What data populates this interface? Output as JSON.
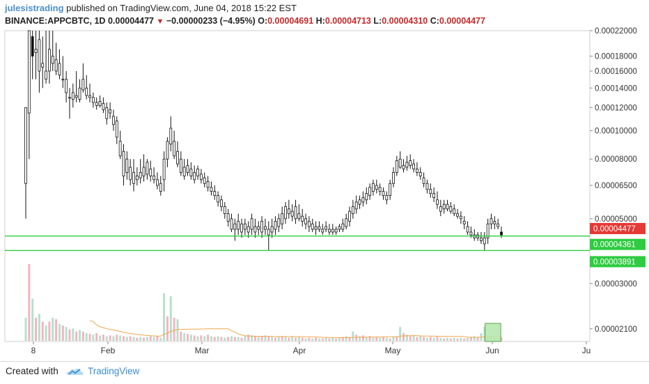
{
  "header": {
    "user": "julesistrading",
    "published": "published on TradingView.com, June 04, 2018 15:22 EST",
    "symbol": "BINANCE:APPCBTC, 1D",
    "last": "0.00004477",
    "change": "−0.00000233 (−4.95%)",
    "open_label": "O:",
    "open": "0.00004691",
    "high_label": "H:",
    "high": "0.00004713",
    "low_label": "L:",
    "low": "0.00004310",
    "close_label": "C:",
    "close": "0.00004477"
  },
  "footer": {
    "created_with": "Created with",
    "brand": "TradingView"
  },
  "chart_data": {
    "type": "candlestick",
    "scale": "log",
    "y_ticks": [
      "0.00022000",
      "0.00018000",
      "0.00016000",
      "0.00014000",
      "0.00012000",
      "0.00010000",
      "0.00008000",
      "0.00006500",
      "0.00005000",
      "0.00003000",
      "0.00002100"
    ],
    "x_ticks": [
      "8",
      "Feb",
      "Mar",
      "Apr",
      "May",
      "Jun",
      "Ju"
    ],
    "horizontal_lines": [
      {
        "value": 4.361e-05,
        "label": "0.00004361",
        "color": "#2ecc40"
      },
      {
        "value": 3.891e-05,
        "label": "0.00003891",
        "color": "#2ecc40"
      }
    ],
    "last_price_label": {
      "value": 4.477e-05,
      "label": "0.00004477",
      "color": "#e53935"
    },
    "colors": {
      "candle": "#111111",
      "volume_up": "#a8dcc0",
      "volume_down": "#f2a6ba",
      "ma": "#f0a64a",
      "level": "#2ecc40",
      "highlight": "#b8e8b0"
    },
    "candles": [
      [
        5e-05,
        6.6e-05,
        0.0001,
        0.00012
      ],
      [
        8e-05,
        0.000115,
        0.00022,
        0.00022
      ],
      [
        0.00015,
        0.00021,
        0.00022,
        0.00018
      ],
      [
        0.00015,
        0.000185,
        0.00022,
        0.00019
      ],
      [
        0.000135,
        0.00016,
        0.00022,
        0.000205
      ],
      [
        0.00014,
        0.000165,
        0.00021,
        0.00017
      ],
      [
        0.000145,
        0.00015,
        0.00022,
        0.00016
      ],
      [
        0.000145,
        0.00016,
        0.00022,
        0.00019
      ],
      [
        0.00016,
        0.00017,
        0.00022,
        0.00018
      ],
      [
        0.000155,
        0.00016,
        0.0002,
        0.000175
      ],
      [
        0.00015,
        0.000155,
        0.00019,
        0.00017
      ],
      [
        0.00014,
        0.00015,
        0.00018,
        0.00015
      ],
      [
        0.000125,
        0.000135,
        0.00016,
        0.00015
      ],
      [
        0.00011,
        0.00013,
        0.00014,
        0.00013
      ],
      [
        0.00012,
        0.000128,
        0.000145,
        0.000135
      ],
      [
        0.000125,
        0.00013,
        0.00016,
        0.000132
      ],
      [
        0.000125,
        0.000128,
        0.00015,
        0.00014
      ],
      [
        0.000135,
        0.000138,
        0.00017,
        0.00015
      ],
      [
        0.000128,
        0.000132,
        0.000155,
        0.00014
      ],
      [
        0.000125,
        0.00013,
        0.000145,
        0.000132
      ],
      [
        0.00012,
        0.000125,
        0.000135,
        0.00013
      ],
      [
        0.000118,
        0.000122,
        0.00013,
        0.000125
      ],
      [
        0.00012,
        0.000122,
        0.000132,
        0.000126
      ],
      [
        0.000115,
        0.000118,
        0.00013,
        0.000124
      ],
      [
        0.000105,
        0.00011,
        0.000125,
        0.00012
      ],
      [
        0.00011,
        0.000115,
        0.000125,
        0.000118
      ],
      [
        0.0001,
        0.000105,
        0.000118,
        0.000112
      ],
      [
        9e-05,
        9.5e-05,
        0.000112,
        0.000108
      ],
      [
        8e-05,
        8.2e-05,
        0.0001,
        9.2e-05
      ],
      [
        6.5e-05,
        7e-05,
        9e-05,
        8.5e-05
      ],
      [
        6.8e-05,
        7.2e-05,
        8.5e-05,
        8e-05
      ],
      [
        6.5e-05,
        6.8e-05,
        8e-05,
        7.5e-05
      ],
      [
        6.2e-05,
        6.6e-05,
        8e-05,
        7.2e-05
      ],
      [
        6.5e-05,
        6.8e-05,
        7.5e-05,
        7e-05
      ],
      [
        6.6e-05,
        6.9e-05,
        8e-05,
        7.2e-05
      ],
      [
        6.7e-05,
        7e-05,
        8.3e-05,
        7.5e-05
      ],
      [
        6.8e-05,
        7.1e-05,
        8e-05,
        7.8e-05
      ],
      [
        6.7e-05,
        7e-05,
        7.9e-05,
        7.4e-05
      ],
      [
        6.6e-05,
        6.8e-05,
        7.5e-05,
        7e-05
      ],
      [
        6.3e-05,
        6.5e-05,
        7.2e-05,
        6.8e-05
      ],
      [
        6e-05,
        6.2e-05,
        7e-05,
        6.6e-05
      ],
      [
        6.2e-05,
        6.8e-05,
        8.5e-05,
        8e-05
      ],
      [
        7.5e-05,
        8e-05,
        9.5e-05,
        9.2e-05
      ],
      [
        8.5e-05,
        9e-05,
        0.000112,
        0.000102
      ],
      [
        8e-05,
        8.2e-05,
        0.0001,
        9.2e-05
      ],
      [
        7.5e-05,
        7.7e-05,
        9.2e-05,
        8.5e-05
      ],
      [
        7e-05,
        7.2e-05,
        8.5e-05,
        8e-05
      ],
      [
        6.8e-05,
        7e-05,
        8e-05,
        7.5e-05
      ],
      [
        7e-05,
        7.2e-05,
        8e-05,
        7.6e-05
      ],
      [
        6.8e-05,
        7e-05,
        7.8e-05,
        7.4e-05
      ],
      [
        6.6e-05,
        6.8e-05,
        7.6e-05,
        7.2e-05
      ],
      [
        6.8e-05,
        7e-05,
        7.6e-05,
        7.4e-05
      ],
      [
        6.6e-05,
        6.8e-05,
        7.4e-05,
        7.1e-05
      ],
      [
        6.4e-05,
        6.6e-05,
        7.2e-05,
        6.9e-05
      ],
      [
        6.2e-05,
        6.4e-05,
        7e-05,
        6.7e-05
      ],
      [
        6e-05,
        6.2e-05,
        6.7e-05,
        6.4e-05
      ],
      [
        5.8e-05,
        6e-05,
        6.5e-05,
        6.2e-05
      ],
      [
        5.5e-05,
        5.7e-05,
        6.2e-05,
        6e-05
      ],
      [
        5.3e-05,
        5.5e-05,
        6e-05,
        5.8e-05
      ],
      [
        5e-05,
        5.2e-05,
        5.7e-05,
        5.5e-05
      ],
      [
        4.7e-05,
        4.9e-05,
        5.4e-05,
        5.2e-05
      ],
      [
        4.5e-05,
        4.6e-05,
        5.2e-05,
        5e-05
      ],
      [
        4.2e-05,
        4.6e-05,
        5e-05,
        4.8e-05
      ],
      [
        4.4e-05,
        4.6e-05,
        5.2e-05,
        4.9e-05
      ],
      [
        4.3e-05,
        4.5e-05,
        5e-05,
        4.8e-05
      ],
      [
        4.4e-05,
        4.6e-05,
        5e-05,
        4.8e-05
      ],
      [
        4.3e-05,
        4.5e-05,
        4.9e-05,
        4.7e-05
      ],
      [
        4.4e-05,
        4.6e-05,
        5.2e-05,
        5e-05
      ],
      [
        4.3e-05,
        4.5e-05,
        5e-05,
        4.7e-05
      ],
      [
        4.4e-05,
        4.6e-05,
        4.9e-05,
        4.7e-05
      ],
      [
        4.3e-05,
        4.5e-05,
        5.1e-05,
        4.9e-05
      ],
      [
        4.4e-05,
        4.6e-05,
        5e-05,
        4.7e-05
      ],
      [
        3.9e-05,
        4.4e-05,
        4.9e-05,
        4.6e-05
      ],
      [
        4.3e-05,
        4.5e-05,
        5e-05,
        4.7e-05
      ],
      [
        4.4e-05,
        4.6e-05,
        5.1e-05,
        4.9e-05
      ],
      [
        4.5e-05,
        4.7e-05,
        5.2e-05,
        5e-05
      ],
      [
        4.6e-05,
        4.8e-05,
        5.5e-05,
        5.2e-05
      ],
      [
        4.8e-05,
        5e-05,
        5.7e-05,
        5.5e-05
      ],
      [
        5e-05,
        5.2e-05,
        5.8e-05,
        5.4e-05
      ],
      [
        4.9e-05,
        5.1e-05,
        5.6e-05,
        5.3e-05
      ],
      [
        4.8e-05,
        5e-05,
        5.8e-05,
        5.5e-05
      ],
      [
        4.9e-05,
        5e-05,
        5.6e-05,
        5.2e-05
      ],
      [
        4.7e-05,
        4.9e-05,
        5.4e-05,
        5.1e-05
      ],
      [
        4.6e-05,
        4.8e-05,
        5.2e-05,
        5e-05
      ],
      [
        4.5e-05,
        4.7e-05,
        5.1e-05,
        4.9e-05
      ],
      [
        4.5e-05,
        4.6e-05,
        5e-05,
        4.8e-05
      ],
      [
        4.4e-05,
        4.6e-05,
        4.9e-05,
        4.7e-05
      ],
      [
        4.5e-05,
        4.6e-05,
        4.9e-05,
        4.7e-05
      ],
      [
        4.4e-05,
        4.5e-05,
        4.8e-05,
        4.6e-05
      ],
      [
        4.5e-05,
        4.6e-05,
        4.9e-05,
        4.7e-05
      ],
      [
        4.4e-05,
        4.5e-05,
        4.8e-05,
        4.6e-05
      ],
      [
        4.4e-05,
        4.5e-05,
        4.8e-05,
        4.6e-05
      ],
      [
        4.4e-05,
        4.5e-05,
        4.7e-05,
        4.6e-05
      ],
      [
        4.5e-05,
        4.6e-05,
        4.8e-05,
        4.7e-05
      ],
      [
        4.5e-05,
        4.6e-05,
        5e-05,
        4.8e-05
      ],
      [
        4.6e-05,
        4.7e-05,
        5.2e-05,
        5e-05
      ],
      [
        4.7e-05,
        4.9e-05,
        5.5e-05,
        5.3e-05
      ],
      [
        5e-05,
        5.2e-05,
        5.8e-05,
        5.5e-05
      ],
      [
        5.2e-05,
        5.4e-05,
        6e-05,
        5.7e-05
      ],
      [
        5.4e-05,
        5.6e-05,
        6e-05,
        5.8e-05
      ],
      [
        5.5e-05,
        5.7e-05,
        6.2e-05,
        5.9e-05
      ],
      [
        5.6e-05,
        5.8e-05,
        6.4e-05,
        6.1e-05
      ],
      [
        5.8e-05,
        6e-05,
        6.6e-05,
        6.4e-05
      ],
      [
        6e-05,
        6.2e-05,
        6.8e-05,
        6.6e-05
      ],
      [
        6.1e-05,
        6.3e-05,
        6.8e-05,
        6.5e-05
      ],
      [
        6e-05,
        6.2e-05,
        6.6e-05,
        6.4e-05
      ],
      [
        5.8e-05,
        6e-05,
        6.4e-05,
        6.2e-05
      ],
      [
        5.6e-05,
        5.8e-05,
        6.2e-05,
        6e-05
      ],
      [
        5.8e-05,
        6e-05,
        6.8e-05,
        6.6e-05
      ],
      [
        6.4e-05,
        6.6e-05,
        7.5e-05,
        7.2e-05
      ],
      [
        7e-05,
        7.2e-05,
        8.2e-05,
        7.9e-05
      ],
      [
        7.4e-05,
        7.5e-05,
        8.5e-05,
        8e-05
      ],
      [
        7.2e-05,
        7.4e-05,
        8e-05,
        7.6e-05
      ],
      [
        7.3e-05,
        7.5e-05,
        8.2e-05,
        7.8e-05
      ],
      [
        7.4e-05,
        7.6e-05,
        8.3e-05,
        7.9e-05
      ],
      [
        7.2e-05,
        7.4e-05,
        8e-05,
        7.7e-05
      ],
      [
        7e-05,
        7.2e-05,
        7.8e-05,
        7.4e-05
      ],
      [
        6.8e-05,
        7e-05,
        7.5e-05,
        7.2e-05
      ],
      [
        6.4e-05,
        6.6e-05,
        7.2e-05,
        6.9e-05
      ],
      [
        6.1e-05,
        6.3e-05,
        6.8e-05,
        6.6e-05
      ],
      [
        5.9e-05,
        6.1e-05,
        6.6e-05,
        6.3e-05
      ],
      [
        5.7e-05,
        5.9e-05,
        6.4e-05,
        6.1e-05
      ],
      [
        5.4e-05,
        5.6e-05,
        6.2e-05,
        5.8e-05
      ],
      [
        5.1e-05,
        5.3e-05,
        5.8e-05,
        5.5e-05
      ],
      [
        5.2e-05,
        5.4e-05,
        5.8e-05,
        5.6e-05
      ],
      [
        5.3e-05,
        5.4e-05,
        5.8e-05,
        5.6e-05
      ],
      [
        5.2e-05,
        5.3e-05,
        5.7e-05,
        5.5e-05
      ],
      [
        5.1e-05,
        5.2e-05,
        5.6e-05,
        5.4e-05
      ],
      [
        5e-05,
        5.1e-05,
        5.4e-05,
        5.2e-05
      ],
      [
        4.8e-05,
        5e-05,
        5.3e-05,
        5.1e-05
      ],
      [
        4.6e-05,
        4.8e-05,
        5.1e-05,
        4.9e-05
      ],
      [
        4.4e-05,
        4.5e-05,
        4.9e-05,
        4.7e-05
      ],
      [
        4.3e-05,
        4.4e-05,
        4.7e-05,
        4.5e-05
      ],
      [
        4.2e-05,
        4.3e-05,
        4.6e-05,
        4.4e-05
      ],
      [
        4.2e-05,
        4.3e-05,
        4.5e-05,
        4.4e-05
      ],
      [
        4.1e-05,
        4.2e-05,
        4.5e-05,
        4.3e-05
      ],
      [
        3.9e-05,
        4.1e-05,
        4.5e-05,
        4.3e-05
      ],
      [
        4.1e-05,
        4.3e-05,
        5e-05,
        4.8e-05
      ],
      [
        4.6e-05,
        4.8e-05,
        5.2e-05,
        5e-05
      ],
      [
        4.6e-05,
        4.8e-05,
        5.1e-05,
        4.9e-05
      ],
      [
        4.6e-05,
        4.7e-05,
        5e-05,
        4.8e-05
      ],
      [
        4.3e-05,
        4.5e-05,
        4.7e-05,
        4.4e-05
      ]
    ],
    "volume": [
      [
        0.3,
        1
      ],
      [
        1.0,
        0
      ],
      [
        0.55,
        1
      ],
      [
        0.3,
        0
      ],
      [
        0.35,
        1
      ],
      [
        0.25,
        0
      ],
      [
        0.2,
        1
      ],
      [
        0.25,
        0
      ],
      [
        0.3,
        1
      ],
      [
        0.28,
        0
      ],
      [
        0.22,
        1
      ],
      [
        0.2,
        0
      ],
      [
        0.18,
        1
      ],
      [
        0.15,
        0
      ],
      [
        0.16,
        1
      ],
      [
        0.12,
        0
      ],
      [
        0.14,
        1
      ],
      [
        0.12,
        0
      ],
      [
        0.1,
        1
      ],
      [
        0.09,
        0
      ],
      [
        0.08,
        1
      ],
      [
        0.1,
        0
      ],
      [
        0.07,
        1
      ],
      [
        0.08,
        0
      ],
      [
        0.06,
        1
      ],
      [
        0.07,
        0
      ],
      [
        0.06,
        1
      ],
      [
        0.08,
        0
      ],
      [
        0.07,
        1
      ],
      [
        0.06,
        0
      ],
      [
        0.05,
        1
      ],
      [
        0.06,
        0
      ],
      [
        0.05,
        1
      ],
      [
        0.04,
        0
      ],
      [
        0.05,
        1
      ],
      [
        0.04,
        0
      ],
      [
        0.05,
        1
      ],
      [
        0.06,
        0
      ],
      [
        0.05,
        1
      ],
      [
        0.06,
        0
      ],
      [
        0.04,
        1
      ],
      [
        0.62,
        1
      ],
      [
        0.32,
        0
      ],
      [
        0.58,
        1
      ],
      [
        0.3,
        0
      ],
      [
        0.28,
        1
      ],
      [
        0.12,
        0
      ],
      [
        0.1,
        1
      ],
      [
        0.09,
        0
      ],
      [
        0.08,
        1
      ],
      [
        0.07,
        0
      ],
      [
        0.06,
        1
      ],
      [
        0.07,
        0
      ],
      [
        0.06,
        1
      ],
      [
        0.08,
        0
      ],
      [
        0.06,
        1
      ],
      [
        0.05,
        0
      ],
      [
        0.06,
        1
      ],
      [
        0.05,
        0
      ],
      [
        0.04,
        1
      ],
      [
        0.05,
        0
      ],
      [
        0.06,
        1
      ],
      [
        0.05,
        0
      ],
      [
        0.05,
        1
      ],
      [
        0.04,
        0
      ],
      [
        0.06,
        1
      ],
      [
        0.08,
        0
      ],
      [
        0.07,
        1
      ],
      [
        0.06,
        0
      ],
      [
        0.05,
        1
      ],
      [
        0.06,
        0
      ],
      [
        0.07,
        1
      ],
      [
        0.06,
        0
      ],
      [
        0.05,
        1
      ],
      [
        0.04,
        0
      ],
      [
        0.05,
        1
      ],
      [
        0.06,
        0
      ],
      [
        0.05,
        1
      ],
      [
        0.04,
        0
      ],
      [
        0.05,
        1
      ],
      [
        0.04,
        0
      ],
      [
        0.05,
        1
      ],
      [
        0.04,
        0
      ],
      [
        0.03,
        1
      ],
      [
        0.04,
        0
      ],
      [
        0.03,
        1
      ],
      [
        0.04,
        0
      ],
      [
        0.03,
        1
      ],
      [
        0.03,
        0
      ],
      [
        0.04,
        1
      ],
      [
        0.03,
        0
      ],
      [
        0.04,
        1
      ],
      [
        0.03,
        0
      ],
      [
        0.04,
        1
      ],
      [
        0.05,
        0
      ],
      [
        0.06,
        1
      ],
      [
        0.05,
        0
      ],
      [
        0.12,
        1
      ],
      [
        0.08,
        0
      ],
      [
        0.06,
        1
      ],
      [
        0.07,
        0
      ],
      [
        0.05,
        1
      ],
      [
        0.06,
        0
      ],
      [
        0.04,
        1
      ],
      [
        0.05,
        0
      ],
      [
        0.04,
        1
      ],
      [
        0.05,
        0
      ],
      [
        0.04,
        1
      ],
      [
        0.03,
        0
      ],
      [
        0.05,
        1
      ],
      [
        0.06,
        0
      ],
      [
        0.18,
        1
      ],
      [
        0.1,
        0
      ],
      [
        0.08,
        1
      ],
      [
        0.06,
        0
      ],
      [
        0.07,
        1
      ],
      [
        0.05,
        0
      ],
      [
        0.06,
        1
      ],
      [
        0.05,
        0
      ],
      [
        0.04,
        1
      ],
      [
        0.05,
        0
      ],
      [
        0.04,
        1
      ],
      [
        0.05,
        0
      ],
      [
        0.04,
        1
      ],
      [
        0.03,
        0
      ],
      [
        0.04,
        1
      ],
      [
        0.03,
        0
      ],
      [
        0.04,
        1
      ],
      [
        0.03,
        0
      ],
      [
        0.04,
        1
      ],
      [
        0.03,
        0
      ],
      [
        0.04,
        1
      ],
      [
        0.05,
        0
      ],
      [
        0.06,
        1
      ],
      [
        0.05,
        0
      ],
      [
        0.1,
        1
      ],
      [
        0.18,
        1
      ],
      [
        0.06,
        0
      ],
      [
        0.05,
        1
      ],
      [
        0.04,
        0
      ],
      [
        0.03,
        1
      ],
      [
        0.04,
        0
      ],
      [
        0.03,
        1
      ],
      [
        0.03,
        0
      ]
    ],
    "highlight_box": {
      "start_index": 137,
      "end_index": 140
    }
  }
}
